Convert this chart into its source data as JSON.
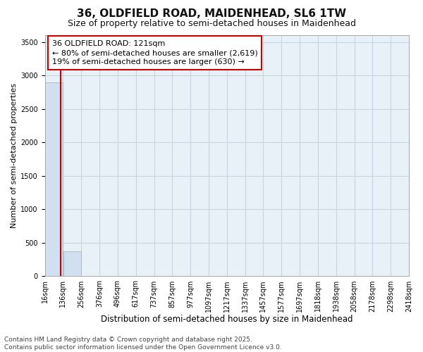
{
  "title_line1": "36, OLDFIELD ROAD, MAIDENHEAD, SL6 1TW",
  "title_line2": "Size of property relative to semi-detached houses in Maidenhead",
  "xlabel": "Distribution of semi-detached houses by size in Maidenhead",
  "ylabel": "Number of semi-detached properties",
  "footer_line1": "Contains HM Land Registry data © Crown copyright and database right 2025.",
  "footer_line2": "Contains public sector information licensed under the Open Government Licence v3.0.",
  "annotation_line1": "36 OLDFIELD ROAD: 121sqm",
  "annotation_line2": "← 80% of semi-detached houses are smaller (2,619)",
  "annotation_line3": "19% of semi-detached houses are larger (630) →",
  "property_size": 121,
  "bin_edges": [
    16,
    136,
    256,
    376,
    496,
    617,
    737,
    857,
    977,
    1097,
    1217,
    1337,
    1457,
    1577,
    1697,
    1818,
    1938,
    2058,
    2178,
    2298,
    2418
  ],
  "bin_values": [
    2900,
    370,
    0,
    0,
    0,
    0,
    0,
    0,
    0,
    0,
    0,
    0,
    0,
    0,
    0,
    0,
    0,
    0,
    0,
    0
  ],
  "bar_color": "#d0e0f0",
  "bar_edge_color": "#a0b8cc",
  "red_line_color": "#cc0000",
  "annotation_box_facecolor": "#ffffff",
  "annotation_box_edgecolor": "#cc0000",
  "grid_color": "#c8d4e0",
  "background_color": "#ffffff",
  "plot_bg_color": "#e8f0f8",
  "ylim": [
    0,
    3600
  ],
  "yticks": [
    0,
    500,
    1000,
    1500,
    2000,
    2500,
    3000,
    3500
  ],
  "title_fontsize": 11,
  "subtitle_fontsize": 9,
  "tick_fontsize": 7,
  "footer_fontsize": 6.5
}
